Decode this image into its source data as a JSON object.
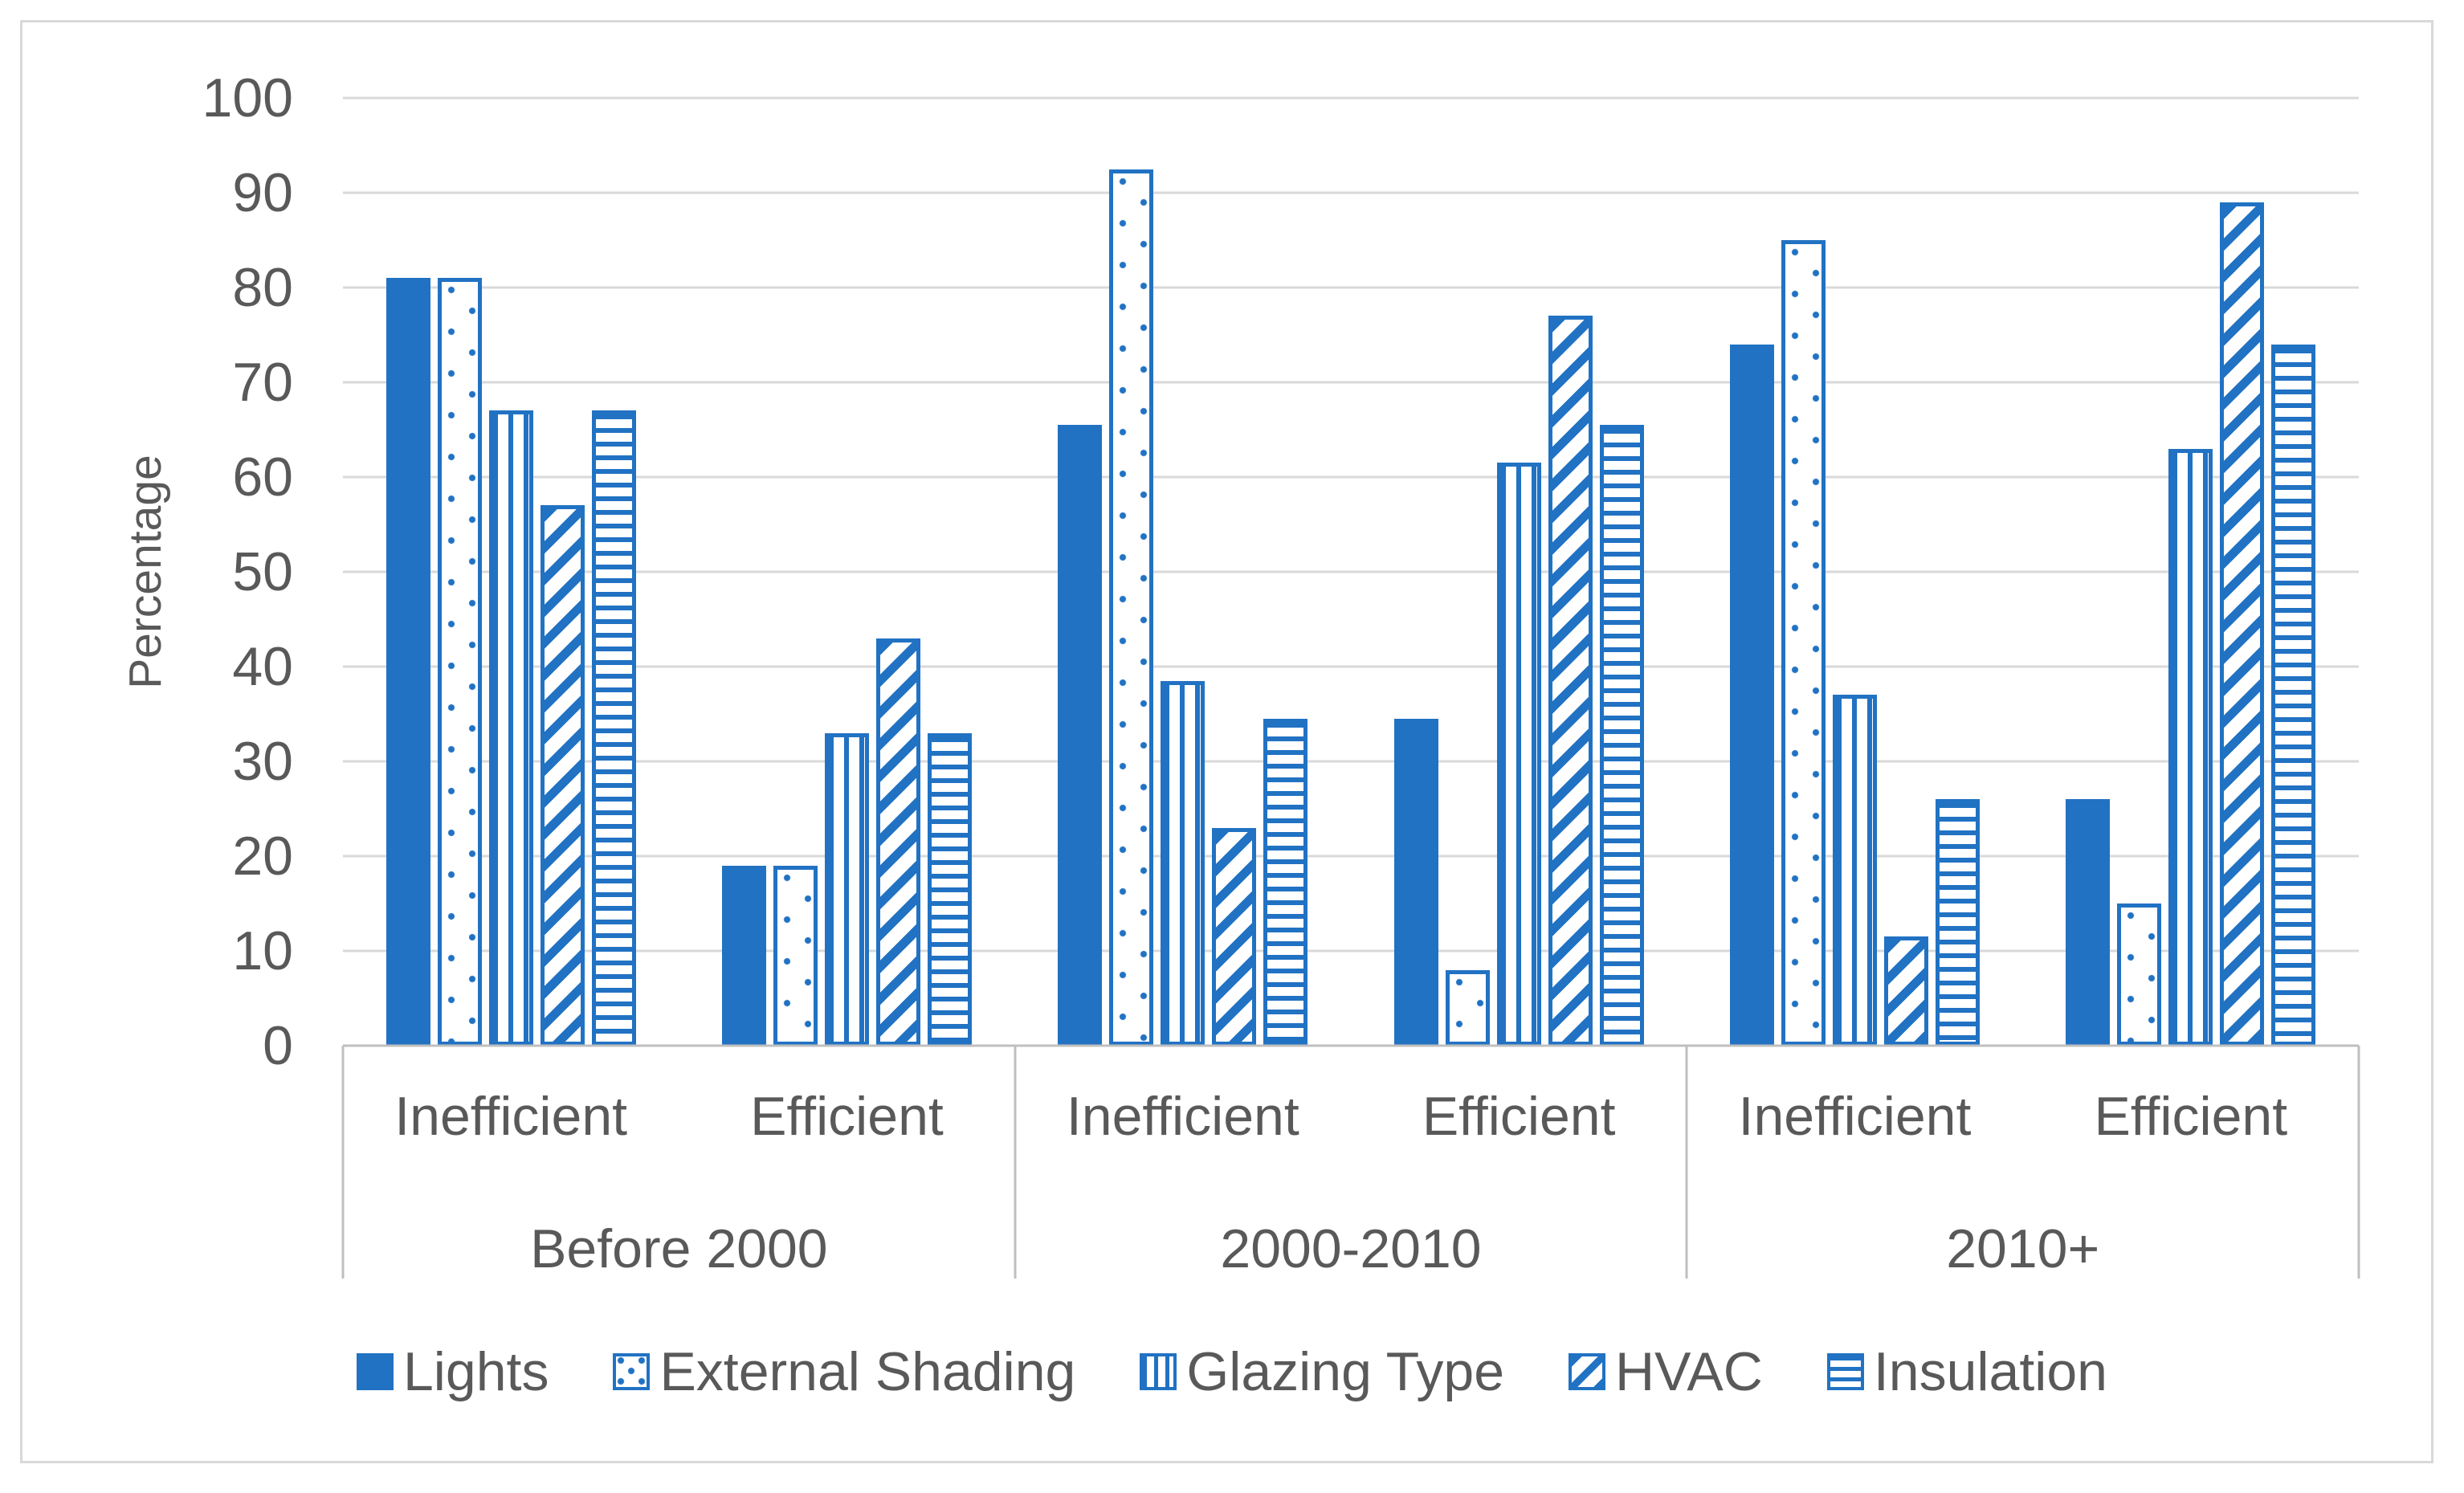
{
  "chart_data": {
    "type": "bar",
    "title": "",
    "xlabel": "",
    "ylabel": "Percentage",
    "ylim": [
      0,
      100
    ],
    "ytick_step": 10,
    "yticks": [
      0,
      10,
      20,
      30,
      40,
      50,
      60,
      70,
      80,
      90,
      100
    ],
    "grid": true,
    "legend_position": "bottom",
    "series": [
      {
        "name": "Lights",
        "pattern": "solid",
        "slug": "lights"
      },
      {
        "name": "External Shading",
        "pattern": "dots",
        "slug": "external-shading"
      },
      {
        "name": "Glazing Type",
        "pattern": "vertical-stripes",
        "slug": "glazing-type"
      },
      {
        "name": "HVAC",
        "pattern": "diagonal-stripes",
        "slug": "hvac"
      },
      {
        "name": "Insulation",
        "pattern": "horizontal-stripes",
        "slug": "insulation"
      }
    ],
    "groups": [
      {
        "label": "Before 2000",
        "subgroups": [
          {
            "label": "Inefficient",
            "values": [
              81,
              81,
              67,
              57,
              67
            ]
          },
          {
            "label": "Efficient",
            "values": [
              19,
              19,
              33,
              43,
              33
            ]
          }
        ]
      },
      {
        "label": "2000-2010",
        "subgroups": [
          {
            "label": "Inefficient",
            "values": [
              65.5,
              92.5,
              38.5,
              23,
              34.5
            ]
          },
          {
            "label": "Efficient",
            "values": [
              34.5,
              8,
              61.5,
              77,
              65.5
            ]
          }
        ]
      },
      {
        "label": "2010+",
        "subgroups": [
          {
            "label": "Inefficient",
            "values": [
              74,
              85,
              37,
              11.5,
              26
            ]
          },
          {
            "label": "Efficient",
            "values": [
              26,
              15,
              63,
              89,
              74
            ]
          }
        ]
      }
    ],
    "colors": {
      "series_blue": "#2172c3",
      "label_gray": "#595959",
      "gridline": "#d9d9d9",
      "axis_line": "#bfbfbf",
      "chart_border": "#d9d9d9",
      "background": "#ffffff"
    }
  }
}
